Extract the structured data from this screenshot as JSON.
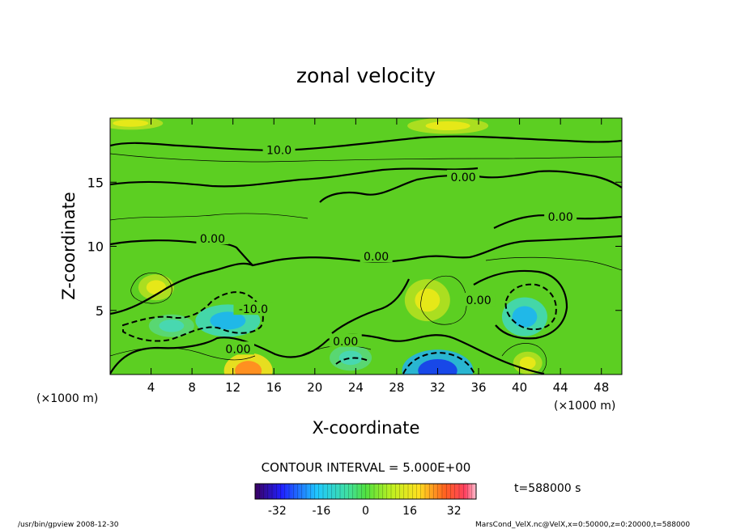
{
  "chart_data": {
    "type": "heatmap",
    "subtype": "contour",
    "title": "zonal velocity",
    "xlabel": "X-coordinate",
    "ylabel": "Z-coordinate",
    "x_unit_left": "(×1000 m)",
    "x_unit_right": "(×1000 m)",
    "xlim": [
      0,
      50
    ],
    "ylim": [
      0,
      20
    ],
    "xticks": [
      "4",
      "8",
      "12",
      "16",
      "20",
      "24",
      "28",
      "32",
      "36",
      "40",
      "44",
      "48"
    ],
    "yticks": [
      "5",
      "10",
      "15"
    ],
    "contour_interval_text": "CONTOUR INTERVAL = 5.000E+00",
    "contour_labels": [
      {
        "text": "10.0",
        "x": 16.5,
        "y": 17.5
      },
      {
        "text": "0.00",
        "x": 34.5,
        "y": 15.4
      },
      {
        "text": "0.00",
        "x": 44.0,
        "y": 12.3
      },
      {
        "text": "0.00",
        "x": 10.0,
        "y": 10.6
      },
      {
        "text": "0.00",
        "x": 26.0,
        "y": 9.2
      },
      {
        "text": "0.00",
        "x": 36.0,
        "y": 5.8
      },
      {
        "text": "-10.0",
        "x": 14.0,
        "y": 5.1
      },
      {
        "text": "0.00",
        "x": 23.0,
        "y": 2.6
      },
      {
        "text": "0.00",
        "x": 12.5,
        "y": 2.0
      }
    ],
    "features": [
      {
        "kind": "max",
        "x": 4.5,
        "y": 6.8,
        "value": 12
      },
      {
        "kind": "min",
        "x": 11.5,
        "y": 4.2,
        "value": -15
      },
      {
        "kind": "min",
        "x": 6.0,
        "y": 3.8,
        "value": -13
      },
      {
        "kind": "max",
        "x": 31.0,
        "y": 5.8,
        "value": 12
      },
      {
        "kind": "min",
        "x": 40.5,
        "y": 4.5,
        "value": -18
      },
      {
        "kind": "max",
        "x": 13.5,
        "y": 0.3,
        "value": 24
      },
      {
        "kind": "min",
        "x": 32.0,
        "y": 0.3,
        "value": -30
      },
      {
        "kind": "max",
        "x": 40.8,
        "y": 0.9,
        "value": 12
      },
      {
        "kind": "min",
        "x": 23.5,
        "y": 1.3,
        "value": -10
      },
      {
        "kind": "max",
        "x": 33.0,
        "y": 19.4,
        "value": 12
      },
      {
        "kind": "max",
        "x": 2.0,
        "y": 19.6,
        "value": 12
      }
    ],
    "colorbar": {
      "ticks": [
        "-32",
        "-16",
        "0",
        "16",
        "32"
      ],
      "range": [
        -40,
        40
      ]
    },
    "time_text": "t=588000 s"
  },
  "footer": {
    "left": "/usr/bin/gpview  2008-12-30",
    "right": "MarsCond_VelX.nc@VelX,x=0:50000,z=0:20000,t=588000"
  },
  "colors": {
    "background": "#ffffff",
    "field_base": "#5ccf22",
    "positive_peak": "#d4e018",
    "negative_peak": "#36c0d8"
  }
}
